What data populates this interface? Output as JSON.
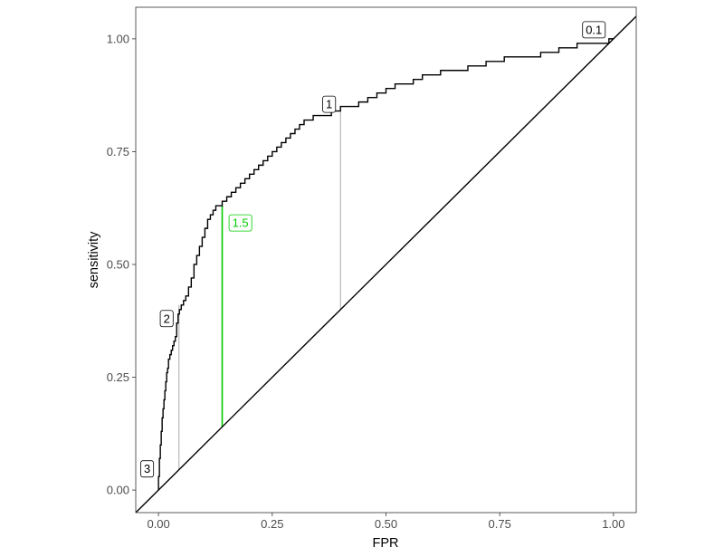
{
  "chart_data": {
    "type": "line",
    "xlabel": "FPR",
    "ylabel": "sensitivity",
    "xlim": [
      -0.05,
      1.05
    ],
    "ylim": [
      -0.05,
      1.07
    ],
    "x_ticks": [
      0.0,
      0.25,
      0.5,
      0.75,
      1.0
    ],
    "x_tick_labels": [
      "0.00",
      "0.25",
      "0.50",
      "0.75",
      "1.00"
    ],
    "y_ticks": [
      0.0,
      0.25,
      0.5,
      0.75,
      1.0
    ],
    "y_tick_labels": [
      "0.00",
      "0.25",
      "0.50",
      "0.75",
      "1.00"
    ],
    "grid": false,
    "legend": "none",
    "series": [
      {
        "color": "#000000",
        "x": [
          0.0,
          0.0,
          0.002,
          0.002,
          0.004,
          0.004,
          0.006,
          0.006,
          0.008,
          0.008,
          0.01,
          0.01,
          0.012,
          0.012,
          0.014,
          0.014,
          0.016,
          0.016,
          0.018,
          0.018,
          0.02,
          0.02,
          0.022,
          0.022,
          0.025,
          0.025,
          0.028,
          0.028,
          0.031,
          0.031,
          0.034,
          0.034,
          0.037,
          0.037,
          0.04,
          0.04,
          0.043,
          0.043,
          0.046,
          0.046,
          0.05,
          0.05,
          0.055,
          0.055,
          0.06,
          0.06,
          0.066,
          0.066,
          0.072,
          0.072,
          0.078,
          0.078,
          0.084,
          0.084,
          0.09,
          0.09,
          0.096,
          0.096,
          0.102,
          0.102,
          0.108,
          0.108,
          0.114,
          0.114,
          0.12,
          0.12,
          0.126,
          0.126,
          0.132,
          0.132,
          0.14,
          0.14,
          0.15,
          0.15,
          0.16,
          0.16,
          0.17,
          0.17,
          0.18,
          0.18,
          0.19,
          0.19,
          0.2,
          0.2,
          0.21,
          0.21,
          0.22,
          0.22,
          0.23,
          0.23,
          0.24,
          0.24,
          0.25,
          0.25,
          0.26,
          0.26,
          0.27,
          0.27,
          0.28,
          0.28,
          0.29,
          0.29,
          0.3,
          0.3,
          0.31,
          0.31,
          0.32,
          0.32,
          0.33,
          0.33,
          0.34,
          0.34,
          0.36,
          0.36,
          0.38,
          0.38,
          0.4,
          0.4,
          0.42,
          0.42,
          0.44,
          0.44,
          0.46,
          0.46,
          0.48,
          0.48,
          0.5,
          0.5,
          0.52,
          0.52,
          0.54,
          0.54,
          0.56,
          0.56,
          0.58,
          0.58,
          0.6,
          0.6,
          0.62,
          0.62,
          0.65,
          0.65,
          0.68,
          0.68,
          0.72,
          0.72,
          0.76,
          0.76,
          0.8,
          0.8,
          0.84,
          0.84,
          0.88,
          0.88,
          0.92,
          0.92,
          0.96,
          0.96,
          0.99,
          0.99,
          1.0
        ],
        "y": [
          0.0,
          0.03,
          0.03,
          0.07,
          0.07,
          0.1,
          0.1,
          0.13,
          0.13,
          0.16,
          0.16,
          0.18,
          0.18,
          0.2,
          0.2,
          0.22,
          0.22,
          0.24,
          0.24,
          0.26,
          0.26,
          0.27,
          0.27,
          0.29,
          0.29,
          0.3,
          0.3,
          0.31,
          0.31,
          0.32,
          0.32,
          0.33,
          0.33,
          0.34,
          0.34,
          0.37,
          0.37,
          0.39,
          0.39,
          0.4,
          0.4,
          0.41,
          0.41,
          0.42,
          0.42,
          0.43,
          0.43,
          0.45,
          0.45,
          0.47,
          0.47,
          0.5,
          0.5,
          0.52,
          0.52,
          0.54,
          0.54,
          0.56,
          0.56,
          0.58,
          0.58,
          0.6,
          0.6,
          0.61,
          0.61,
          0.62,
          0.62,
          0.63,
          0.63,
          0.63,
          0.63,
          0.64,
          0.64,
          0.65,
          0.65,
          0.66,
          0.66,
          0.67,
          0.67,
          0.68,
          0.68,
          0.69,
          0.69,
          0.7,
          0.7,
          0.71,
          0.71,
          0.72,
          0.72,
          0.73,
          0.73,
          0.74,
          0.74,
          0.75,
          0.75,
          0.76,
          0.76,
          0.77,
          0.77,
          0.78,
          0.78,
          0.79,
          0.79,
          0.8,
          0.8,
          0.81,
          0.81,
          0.82,
          0.82,
          0.82,
          0.82,
          0.83,
          0.83,
          0.83,
          0.83,
          0.84,
          0.84,
          0.85,
          0.85,
          0.85,
          0.85,
          0.86,
          0.86,
          0.87,
          0.87,
          0.88,
          0.88,
          0.89,
          0.89,
          0.9,
          0.9,
          0.9,
          0.9,
          0.91,
          0.91,
          0.92,
          0.92,
          0.92,
          0.92,
          0.93,
          0.93,
          0.93,
          0.93,
          0.94,
          0.94,
          0.95,
          0.95,
          0.96,
          0.96,
          0.96,
          0.96,
          0.97,
          0.97,
          0.98,
          0.98,
          0.99,
          0.99,
          0.99,
          0.99,
          1.0,
          1.0
        ]
      },
      {
        "color": "#000000",
        "x": [
          -0.05,
          1.05
        ],
        "y": [
          -0.05,
          1.05
        ]
      }
    ],
    "annotations": [
      {
        "label": "3",
        "x": 0.0,
        "y": 0.0,
        "line_color": "#aaaaaa",
        "text_color": "#000000",
        "border_color": "#000000",
        "label_x": -0.025,
        "label_y": 0.047
      },
      {
        "label": "2",
        "x": 0.045,
        "y": 0.41,
        "line_color": "#aaaaaa",
        "text_color": "#000000",
        "border_color": "#000000",
        "label_x": 0.018,
        "label_y": 0.38
      },
      {
        "label": "1.5",
        "x": 0.14,
        "y": 0.63,
        "line_color": "#00cc00",
        "text_color": "#00cc00",
        "border_color": "#00cc00",
        "label_x": 0.18,
        "label_y": 0.592
      },
      {
        "label": "1",
        "x": 0.4,
        "y": 0.84,
        "line_color": "#aaaaaa",
        "text_color": "#000000",
        "border_color": "#000000",
        "label_x": 0.375,
        "label_y": 0.855
      },
      {
        "label": "0.1",
        "x": 1.0,
        "y": 1.0,
        "line_color": "#aaaaaa",
        "text_color": "#000000",
        "border_color": "#000000",
        "label_x": 0.957,
        "label_y": 1.02
      }
    ]
  }
}
